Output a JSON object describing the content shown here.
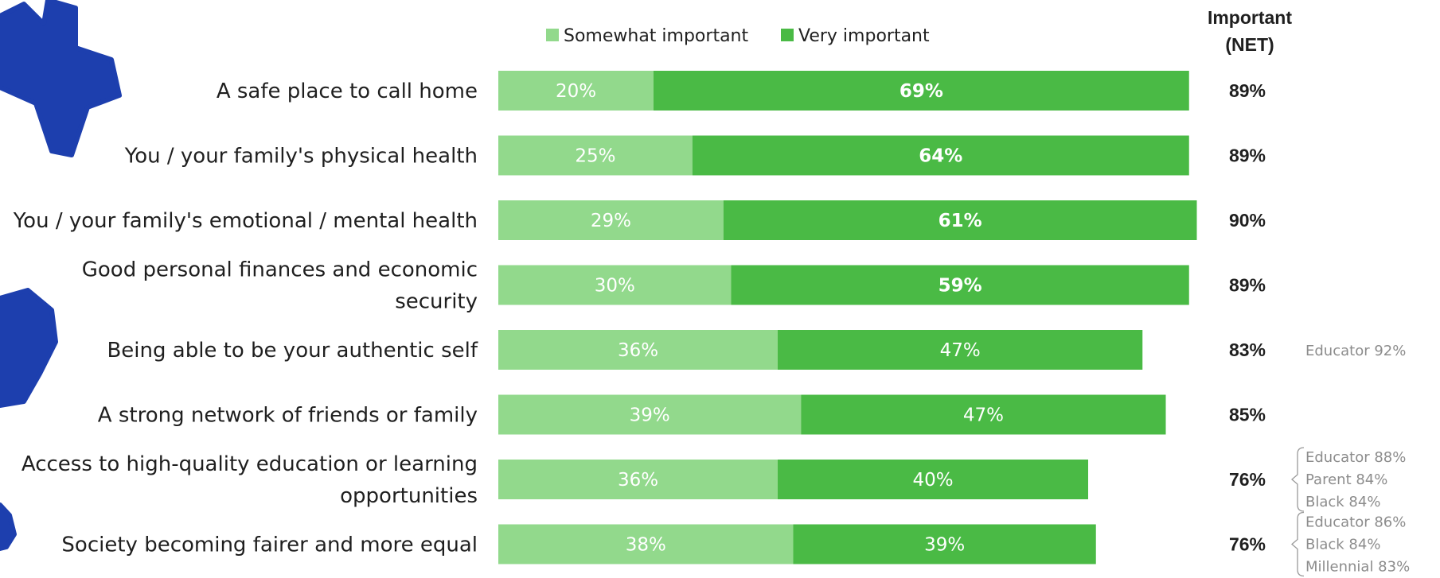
{
  "colors": {
    "somewhat": "#92d98c",
    "very": "#4aba45",
    "decor": "#1d3fae"
  },
  "decor_icon": "blue-fuzzy-star-decoration",
  "net_header": [
    "Important",
    "(NET)"
  ],
  "chart_data": {
    "type": "bar",
    "orientation": "horizontal",
    "stacked": true,
    "legend": {
      "placement": "top",
      "items": [
        "Somewhat important",
        "Very important"
      ]
    },
    "categories": [
      [
        "A safe place to call home"
      ],
      [
        "You / your family's physical health"
      ],
      [
        "You / your family's emotional / mental health"
      ],
      [
        "Good personal finances and economic",
        "security"
      ],
      [
        "Being able to be your authentic self"
      ],
      [
        "A strong network of friends or family"
      ],
      [
        "Access to high-quality education or learning",
        "opportunities"
      ],
      [
        "Society becoming fairer and more equal"
      ]
    ],
    "series": [
      {
        "name": "Somewhat important",
        "values": [
          20,
          25,
          29,
          30,
          36,
          39,
          36,
          38
        ]
      },
      {
        "name": "Very important",
        "values": [
          69,
          64,
          61,
          59,
          47,
          47,
          40,
          39
        ]
      }
    ],
    "value_labels": {
      "Somewhat important": [
        "20%",
        "25%",
        "29%",
        "30%",
        "36%",
        "39%",
        "36%",
        "38%"
      ],
      "Very important": [
        "69%",
        "64%",
        "61%",
        "59%",
        "47%",
        "47%",
        "40%",
        "39%"
      ]
    },
    "net_labels": [
      "89%",
      "89%",
      "90%",
      "89%",
      "83%",
      "85%",
      "76%",
      "76%"
    ],
    "notes": [
      [],
      [],
      [],
      [],
      [
        "Educator 92%"
      ],
      [],
      [
        "Educator 88%",
        "Parent 84%",
        "Black 84%"
      ],
      [
        "Educator 86%",
        "Black 84%",
        "Millennial 83%"
      ]
    ],
    "grid": false
  }
}
